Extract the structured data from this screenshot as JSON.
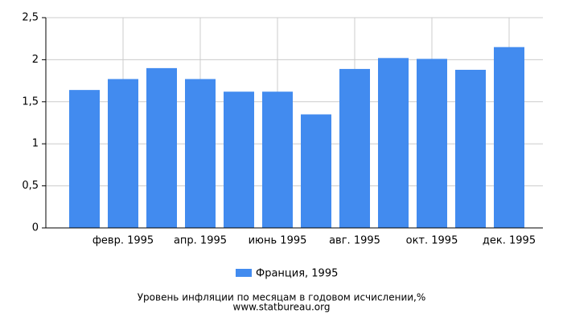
{
  "chart_data": {
    "type": "bar",
    "title": "Уровень инфляции по месяцам в годовом исчислении,%",
    "source": "www.statbureau.org",
    "categories": [
      null,
      "февр. 1995",
      null,
      "апр. 1995",
      null,
      "июнь 1995",
      null,
      "авг. 1995",
      null,
      "окт. 1995",
      null,
      "дек. 1995"
    ],
    "series": [
      {
        "name": "Франция, 1995",
        "color": "#428bef",
        "values": [
          1.64,
          1.77,
          1.9,
          1.77,
          1.62,
          1.62,
          1.35,
          1.89,
          2.02,
          2.01,
          1.88,
          2.15
        ]
      }
    ],
    "ylim": [
      0,
      2.5
    ],
    "yticks": [
      0,
      {
        "value": 0.5,
        "label": "0,5"
      },
      1,
      {
        "value": 1.5,
        "label": "1,5"
      },
      2,
      {
        "value": 2.5,
        "label": "2,5"
      }
    ],
    "grid": true
  }
}
